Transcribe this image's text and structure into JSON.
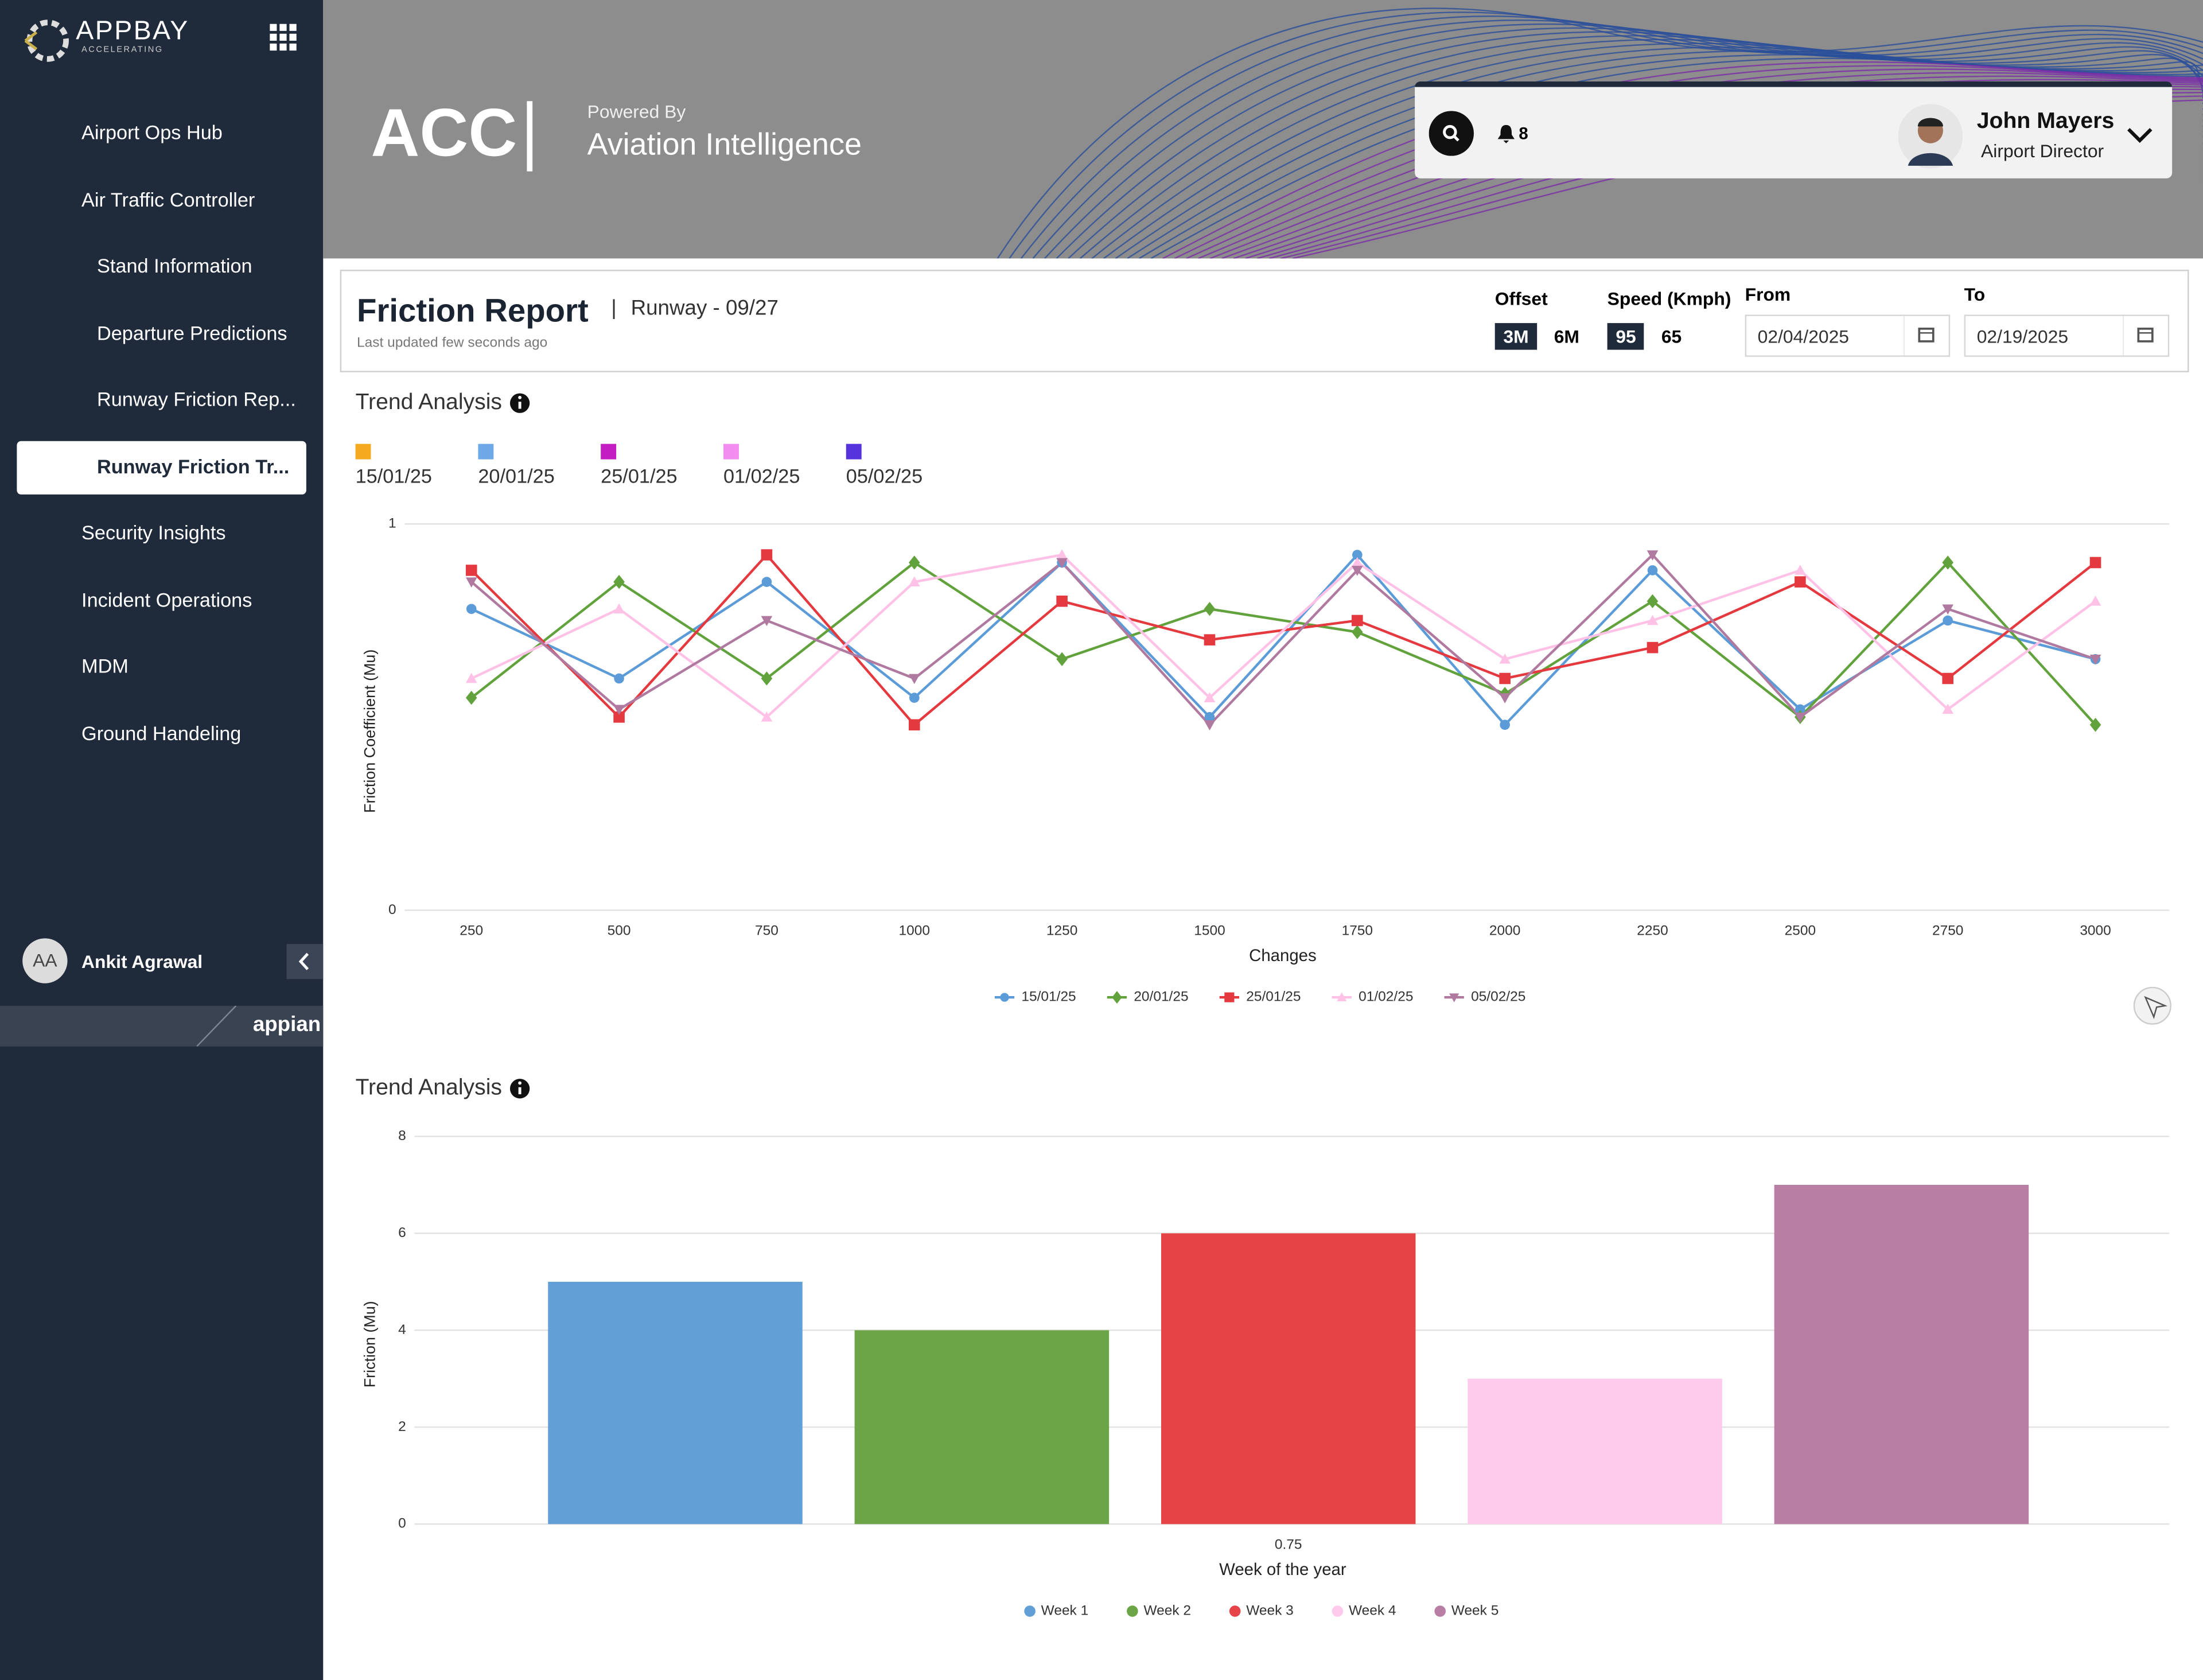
{
  "sidebar": {
    "logo": "APPBAY",
    "logo_tagline": "ACCELERATING",
    "nav": [
      {
        "label": "Airport Ops Hub"
      },
      {
        "label": "Air Traffic Controller",
        "children": [
          "Stand Information",
          "Departure Predictions",
          "Runway Friction Rep...",
          "Runway Friction Tr..."
        ],
        "active_child": 3
      },
      {
        "label": "Security Insights"
      },
      {
        "label": "Incident Operations"
      },
      {
        "label": "MDM"
      },
      {
        "label": "Ground Handeling"
      }
    ],
    "user_initials": "AA",
    "user_name": "Ankit Agrawal",
    "footer": "appian"
  },
  "header": {
    "title": "ACC",
    "powered_by": "Powered By",
    "product": "Aviation Intelligence",
    "notifications": 8,
    "user_name": "John Mayers",
    "user_role": "Airport Director"
  },
  "report": {
    "title": "Friction Report",
    "runway": "Runway - 09/27",
    "updated": "Last updated few seconds ago",
    "offset_label": "Offset",
    "offset_options": [
      "3M",
      "6M"
    ],
    "speed_label": "Speed (Kmph)",
    "speed_options": [
      "95",
      "65"
    ],
    "from_label": "From",
    "from_value": "02/04/2025",
    "to_label": "To",
    "to_value": "02/19/2025"
  },
  "trend_legend": {
    "items": [
      {
        "label": "15/01/25",
        "color": "#f5a91e"
      },
      {
        "label": "20/01/25",
        "color": "#6fa8e6"
      },
      {
        "label": "25/01/25",
        "color": "#c21ec2"
      },
      {
        "label": "01/02/25",
        "color": "#f28cef"
      },
      {
        "label": "05/02/25",
        "color": "#5533dd"
      }
    ]
  },
  "chart_data": [
    {
      "type": "line",
      "title": "Trend Analysis",
      "x_label": "Changes",
      "y_label": "Friction Coefficient (Mu)",
      "x": [
        250,
        500,
        750,
        1000,
        1250,
        1500,
        1750,
        2000,
        2250,
        2500,
        2750,
        3000
      ],
      "xlim": [
        125,
        3125
      ],
      "xticks": [
        250,
        500,
        750,
        1000,
        1250,
        1500,
        1750,
        2000,
        2250,
        2500,
        2750,
        3000
      ],
      "ylim": [
        0,
        1
      ],
      "yticks": [
        0,
        1
      ],
      "grid": true,
      "series": [
        {
          "name": "15/01/25",
          "color": "#5b9bd8",
          "marker": "circle",
          "values": [
            0.78,
            0.6,
            0.85,
            0.55,
            0.9,
            0.5,
            0.92,
            0.48,
            0.88,
            0.52,
            0.75,
            0.65
          ]
        },
        {
          "name": "20/01/25",
          "color": "#62a23c",
          "marker": "diamond",
          "values": [
            0.55,
            0.85,
            0.6,
            0.9,
            0.65,
            0.78,
            0.72,
            0.56,
            0.8,
            0.5,
            0.9,
            0.48
          ]
        },
        {
          "name": "25/01/25",
          "color": "#e3393f",
          "marker": "square",
          "values": [
            0.88,
            0.5,
            0.92,
            0.48,
            0.8,
            0.7,
            0.75,
            0.6,
            0.68,
            0.85,
            0.6,
            0.9
          ]
        },
        {
          "name": "01/02/25",
          "color": "#ffc2e6",
          "marker": "triangle",
          "values": [
            0.6,
            0.78,
            0.5,
            0.85,
            0.92,
            0.55,
            0.9,
            0.65,
            0.75,
            0.88,
            0.52,
            0.8
          ]
        },
        {
          "name": "05/02/25",
          "color": "#b07aa0",
          "marker": "triangle-down",
          "values": [
            0.85,
            0.52,
            0.75,
            0.6,
            0.9,
            0.48,
            0.88,
            0.55,
            0.92,
            0.5,
            0.78,
            0.65
          ]
        }
      ]
    },
    {
      "type": "bar",
      "title": "Trend Analysis",
      "x_label": "Week of the year",
      "y_label": "Friction (Mu)",
      "categories": [
        "0.75"
      ],
      "ylim": [
        0,
        8
      ],
      "yticks": [
        0,
        2,
        4,
        6,
        8
      ],
      "grid": true,
      "series": [
        {
          "name": "Week 1",
          "color": "#629fd7",
          "values": [
            5
          ]
        },
        {
          "name": "Week 2",
          "color": "#6ca545",
          "values": [
            4
          ]
        },
        {
          "name": "Week 3",
          "color": "#e64347",
          "values": [
            6
          ]
        },
        {
          "name": "Week 4",
          "color": "#ffcaec",
          "values": [
            3
          ]
        },
        {
          "name": "Week 5",
          "color": "#b87ea3",
          "values": [
            7
          ]
        }
      ]
    }
  ]
}
